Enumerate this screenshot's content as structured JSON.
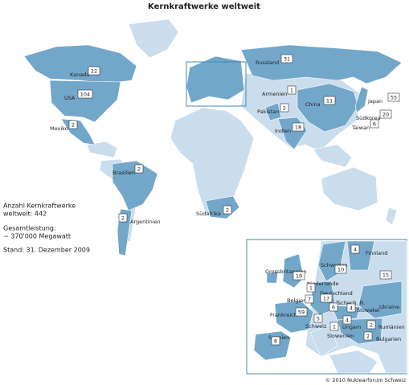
{
  "title": "Kernkraftwerke weltweit",
  "world": [
    {
      "name": "Kanada",
      "count": "22"
    },
    {
      "name": "USA",
      "count": "104"
    },
    {
      "name": "Mexiko",
      "count": "2"
    },
    {
      "name": "Brasilien",
      "count": "2"
    },
    {
      "name": "Argentinien",
      "count": "2"
    },
    {
      "name": "Südafrika",
      "count": "2"
    },
    {
      "name": "Russland",
      "count": "31"
    },
    {
      "name": "Armenien",
      "count": "1"
    },
    {
      "name": "Pakistan",
      "count": "2"
    },
    {
      "name": "Indien",
      "count": "18"
    },
    {
      "name": "China",
      "count": "11"
    },
    {
      "name": "Japan",
      "count": "55"
    },
    {
      "name": "Südkorea",
      "count": "20"
    },
    {
      "name": "Taiwan",
      "count": "6"
    }
  ],
  "europe": [
    {
      "name": "Finnland",
      "count": "4"
    },
    {
      "name": "Schweden",
      "count": "10"
    },
    {
      "name": "Grossbritannien",
      "count": "19"
    },
    {
      "name": "Niederlande",
      "count": "1"
    },
    {
      "name": "Deutschland",
      "count": "17"
    },
    {
      "name": "Belgien",
      "count": "7"
    },
    {
      "name": "Tschech. R.",
      "count": "6"
    },
    {
      "name": "Slowakei",
      "count": "4"
    },
    {
      "name": "Ukraine",
      "count": "15"
    },
    {
      "name": "Frankreich",
      "count": "59"
    },
    {
      "name": "Schweiz",
      "count": "5"
    },
    {
      "name": "Ungarn",
      "count": "4"
    },
    {
      "name": "Slowenien",
      "count": "1"
    },
    {
      "name": "Rumänien",
      "count": "2"
    },
    {
      "name": "Bulgarien",
      "count": "2"
    },
    {
      "name": "Spanien",
      "count": "8"
    }
  ],
  "info": {
    "count_label": "Anzahl Kernkraftwerke",
    "count_total": "weltweit: 442",
    "capacity_label": "Gesamtleistung:",
    "capacity": "~ 370'000 Megawatt",
    "date": "Stand: 31. Dezember 2009"
  },
  "credit": "© 2010 Nuklearforum Schweiz"
}
